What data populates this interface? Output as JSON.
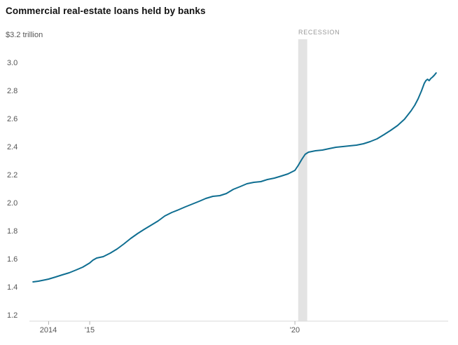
{
  "title": "Commercial real-estate loans held by banks",
  "colors": {
    "line": "#0f6e91",
    "recession_band": "#e3e3e3",
    "axis_line": "#d8d8d8",
    "tick_mark": "#b0b0b0",
    "tick_text": "#555555",
    "recession_text": "#999999",
    "title_text": "#111111"
  },
  "chart_data": {
    "type": "line",
    "title": "Commercial real-estate loans held by banks",
    "ylabel_top": "$3.2 trillion",
    "unit": "trillion USD",
    "ylim": [
      1.2,
      3.2
    ],
    "grid": false,
    "legend": "none",
    "y_ticks": [
      3.0,
      2.8,
      2.6,
      2.4,
      2.2,
      2.0,
      1.8,
      1.6,
      1.4,
      1.2
    ],
    "x_ticks": [
      {
        "label": "2014",
        "t": 2014
      },
      {
        "label": "'15",
        "t": 2015
      },
      {
        "label": "'20",
        "t": 2020
      }
    ],
    "recession": {
      "label": "RECESSION",
      "start": 2020.08,
      "end": 2020.3
    },
    "series": [
      {
        "name": "Commercial real-estate loans held by banks",
        "points": [
          [
            2013.62,
            1.44
          ],
          [
            2013.75,
            1.445
          ],
          [
            2013.92,
            1.455
          ],
          [
            2014.0,
            1.46
          ],
          [
            2014.17,
            1.475
          ],
          [
            2014.33,
            1.49
          ],
          [
            2014.5,
            1.505
          ],
          [
            2014.67,
            1.525
          ],
          [
            2014.83,
            1.545
          ],
          [
            2015.0,
            1.575
          ],
          [
            2015.08,
            1.595
          ],
          [
            2015.17,
            1.61
          ],
          [
            2015.33,
            1.62
          ],
          [
            2015.5,
            1.645
          ],
          [
            2015.67,
            1.675
          ],
          [
            2015.83,
            1.71
          ],
          [
            2016.0,
            1.75
          ],
          [
            2016.17,
            1.785
          ],
          [
            2016.33,
            1.815
          ],
          [
            2016.5,
            1.845
          ],
          [
            2016.67,
            1.875
          ],
          [
            2016.83,
            1.91
          ],
          [
            2017.0,
            1.935
          ],
          [
            2017.17,
            1.955
          ],
          [
            2017.33,
            1.975
          ],
          [
            2017.5,
            1.995
          ],
          [
            2017.67,
            2.015
          ],
          [
            2017.83,
            2.035
          ],
          [
            2018.0,
            2.05
          ],
          [
            2018.17,
            2.055
          ],
          [
            2018.33,
            2.07
          ],
          [
            2018.5,
            2.1
          ],
          [
            2018.67,
            2.12
          ],
          [
            2018.83,
            2.14
          ],
          [
            2019.0,
            2.15
          ],
          [
            2019.17,
            2.155
          ],
          [
            2019.33,
            2.17
          ],
          [
            2019.5,
            2.18
          ],
          [
            2019.67,
            2.195
          ],
          [
            2019.83,
            2.21
          ],
          [
            2020.0,
            2.235
          ],
          [
            2020.08,
            2.27
          ],
          [
            2020.17,
            2.315
          ],
          [
            2020.25,
            2.35
          ],
          [
            2020.33,
            2.365
          ],
          [
            2020.5,
            2.375
          ],
          [
            2020.67,
            2.38
          ],
          [
            2020.83,
            2.39
          ],
          [
            2021.0,
            2.4
          ],
          [
            2021.17,
            2.405
          ],
          [
            2021.33,
            2.41
          ],
          [
            2021.5,
            2.415
          ],
          [
            2021.67,
            2.425
          ],
          [
            2021.83,
            2.44
          ],
          [
            2022.0,
            2.46
          ],
          [
            2022.17,
            2.49
          ],
          [
            2022.33,
            2.52
          ],
          [
            2022.5,
            2.555
          ],
          [
            2022.67,
            2.6
          ],
          [
            2022.83,
            2.66
          ],
          [
            2022.92,
            2.7
          ],
          [
            2023.0,
            2.745
          ],
          [
            2023.08,
            2.8
          ],
          [
            2023.15,
            2.855
          ],
          [
            2023.19,
            2.875
          ],
          [
            2023.23,
            2.885
          ],
          [
            2023.27,
            2.875
          ],
          [
            2023.31,
            2.89
          ],
          [
            2023.35,
            2.9
          ],
          [
            2023.4,
            2.915
          ],
          [
            2023.44,
            2.93
          ]
        ]
      }
    ]
  }
}
